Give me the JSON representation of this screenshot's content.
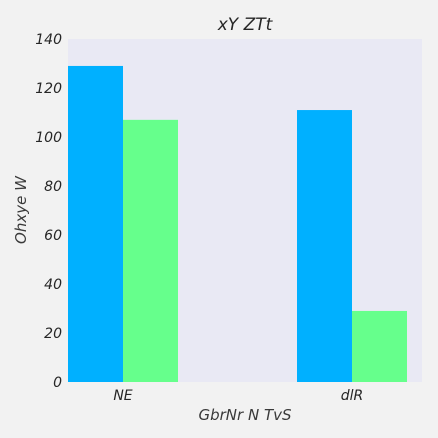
{
  "chart_data": {
    "type": "bar",
    "title": "xY ZTt",
    "xlabel": "GbrNr N TvS",
    "ylabel": "Ohxye  W",
    "categories": [
      "NE",
      "dlR"
    ],
    "series": [
      {
        "values": [
          129,
          111
        ],
        "color": "#00b0ff"
      },
      {
        "values": [
          107,
          29
        ],
        "color": "#66ff8c"
      }
    ],
    "ylim": [
      0,
      140
    ],
    "yticks": [
      0,
      20,
      40,
      60,
      80,
      100,
      120,
      140
    ],
    "grid": false,
    "plot_background": "#e9e9f4"
  }
}
